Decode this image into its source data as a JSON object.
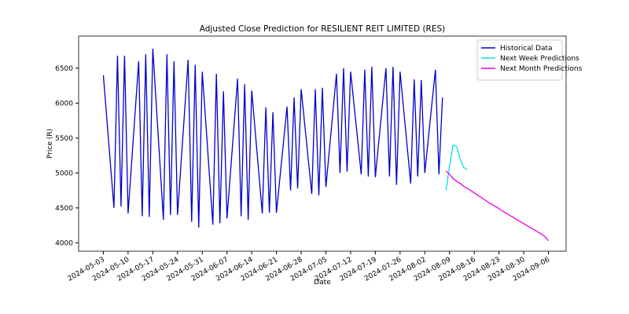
{
  "chart_data": {
    "type": "line",
    "title": "Adjusted Close Prediction for RESILIENT REIT LIMITED (RES)",
    "xlabel": "Date",
    "ylabel": "Price (R)",
    "xlim": [
      "2024-04-26",
      "2024-09-11"
    ],
    "ylim": [
      3880,
      6960
    ],
    "xticks": [
      "2024-05-03",
      "2024-05-10",
      "2024-05-17",
      "2024-05-24",
      "2024-05-31",
      "2024-06-07",
      "2024-06-14",
      "2024-06-21",
      "2024-06-28",
      "2024-07-05",
      "2024-07-12",
      "2024-07-19",
      "2024-07-26",
      "2024-08-02",
      "2024-08-09",
      "2024-08-16",
      "2024-08-23",
      "2024-08-30",
      "2024-09-06"
    ],
    "yticks": [
      4000,
      4500,
      5000,
      5500,
      6000,
      6500
    ],
    "legend": "upper right",
    "series": [
      {
        "name": "Historical Data",
        "color": "#0000cc",
        "x": [
          "2024-05-03",
          "2024-05-06",
          "2024-05-07",
          "2024-05-08",
          "2024-05-09",
          "2024-05-10",
          "2024-05-13",
          "2024-05-14",
          "2024-05-15",
          "2024-05-16",
          "2024-05-17",
          "2024-05-20",
          "2024-05-21",
          "2024-05-22",
          "2024-05-23",
          "2024-05-24",
          "2024-05-27",
          "2024-05-28",
          "2024-05-29",
          "2024-05-30",
          "2024-05-31",
          "2024-06-03",
          "2024-06-04",
          "2024-06-05",
          "2024-06-06",
          "2024-06-07",
          "2024-06-10",
          "2024-06-11",
          "2024-06-12",
          "2024-06-13",
          "2024-06-14",
          "2024-06-17",
          "2024-06-18",
          "2024-06-19",
          "2024-06-20",
          "2024-06-21",
          "2024-06-24",
          "2024-06-25",
          "2024-06-26",
          "2024-06-27",
          "2024-06-28",
          "2024-07-01",
          "2024-07-02",
          "2024-07-03",
          "2024-07-04",
          "2024-07-05",
          "2024-07-08",
          "2024-07-09",
          "2024-07-10",
          "2024-07-11",
          "2024-07-12",
          "2024-07-15",
          "2024-07-16",
          "2024-07-17",
          "2024-07-18",
          "2024-07-19",
          "2024-07-22",
          "2024-07-23",
          "2024-07-24",
          "2024-07-25",
          "2024-07-26",
          "2024-07-29",
          "2024-07-30",
          "2024-07-31",
          "2024-08-01",
          "2024-08-02",
          "2024-08-05",
          "2024-08-06",
          "2024-08-07"
        ],
        "values": [
          6400,
          4500,
          6680,
          4520,
          6680,
          4420,
          6600,
          4380,
          6700,
          4370,
          6780,
          4330,
          6700,
          4400,
          6600,
          4400,
          6620,
          4300,
          6550,
          4220,
          6450,
          4260,
          6420,
          4280,
          6170,
          4350,
          6350,
          4380,
          6270,
          4330,
          6180,
          4420,
          5940,
          4430,
          5870,
          4430,
          5950,
          4750,
          6080,
          4780,
          6200,
          4700,
          6200,
          4680,
          6220,
          4800,
          6420,
          5000,
          6500,
          5020,
          6450,
          4980,
          6480,
          4950,
          6520,
          4940,
          6500,
          4950,
          6520,
          4830,
          6450,
          4850,
          6340,
          4950,
          6330,
          5000,
          6480,
          4980,
          6080
        ]
      },
      {
        "name": "Next Week Predictions",
        "color": "#00e5e5",
        "x": [
          "2024-08-08",
          "2024-08-09",
          "2024-08-10",
          "2024-08-11",
          "2024-08-12",
          "2024-08-13",
          "2024-08-14"
        ],
        "values": [
          4750,
          5100,
          5400,
          5380,
          5200,
          5080,
          5050
        ]
      },
      {
        "name": "Next Month Predictions",
        "color": "#e600e6",
        "x": [
          "2024-08-08",
          "2024-08-09",
          "2024-08-10",
          "2024-08-11",
          "2024-08-12",
          "2024-08-13",
          "2024-08-14",
          "2024-08-15",
          "2024-08-16",
          "2024-08-17",
          "2024-08-18",
          "2024-08-19",
          "2024-08-20",
          "2024-08-21",
          "2024-08-22",
          "2024-08-23",
          "2024-08-24",
          "2024-08-25",
          "2024-08-26",
          "2024-08-27",
          "2024-08-28",
          "2024-08-29",
          "2024-08-30",
          "2024-08-31",
          "2024-09-01",
          "2024-09-02",
          "2024-09-03",
          "2024-09-04",
          "2024-09-05",
          "2024-09-06"
        ],
        "values": [
          5030,
          4980,
          4920,
          4880,
          4850,
          4810,
          4780,
          4750,
          4715,
          4680,
          4650,
          4615,
          4580,
          4550,
          4520,
          4490,
          4455,
          4425,
          4395,
          4365,
          4335,
          4305,
          4275,
          4245,
          4215,
          4185,
          4155,
          4125,
          4090,
          4030
        ]
      }
    ]
  }
}
